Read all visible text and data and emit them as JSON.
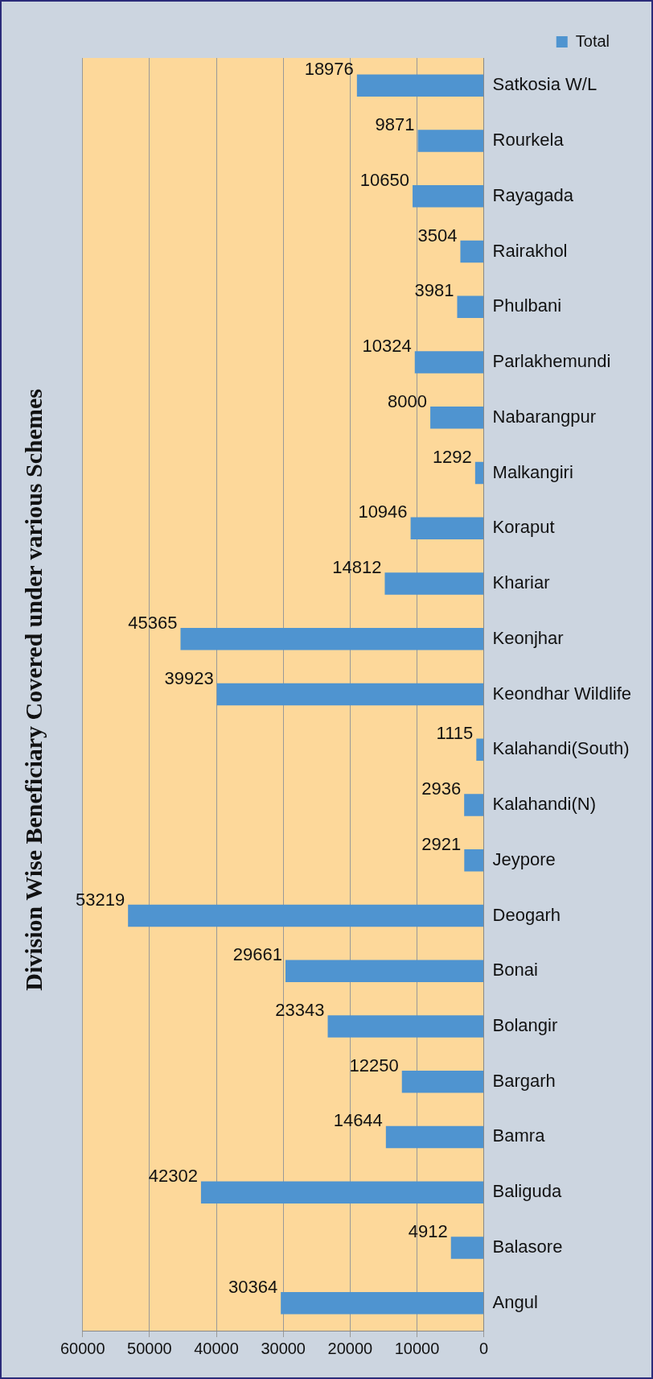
{
  "chart_data": {
    "type": "bar",
    "orientation": "horizontal",
    "title": "Division Wise Beneficiary Covered under various Schemes",
    "categories": [
      "Satkosia W/L",
      "Rourkela",
      "Rayagada",
      "Rairakhol",
      "Phulbani",
      "Parlakhemundi",
      "Nabarangpur",
      "Malkangiri",
      "Koraput",
      "Khariar",
      "Keonjhar",
      "Keondhar Wildlife",
      "Kalahandi(South)",
      "Kalahandi(N)",
      "Jeypore",
      "Deogarh",
      "Bonai",
      "Bolangir",
      "Bargarh",
      "Bamra",
      "Baliguda",
      "Balasore",
      "Angul"
    ],
    "series": [
      {
        "name": "Total",
        "color": "#4f94d0",
        "values": [
          18976,
          9871,
          10650,
          3504,
          3981,
          10324,
          8000,
          1292,
          10946,
          14812,
          45365,
          39923,
          1115,
          2936,
          2921,
          53219,
          29661,
          23343,
          12250,
          14644,
          42302,
          4912,
          30364
        ]
      }
    ],
    "xlim": [
      60000,
      0
    ],
    "xticks": [
      60000,
      50000,
      40000,
      30000,
      20000,
      10000,
      0
    ],
    "grid": "x",
    "legend": "top right",
    "data_labels": true
  }
}
